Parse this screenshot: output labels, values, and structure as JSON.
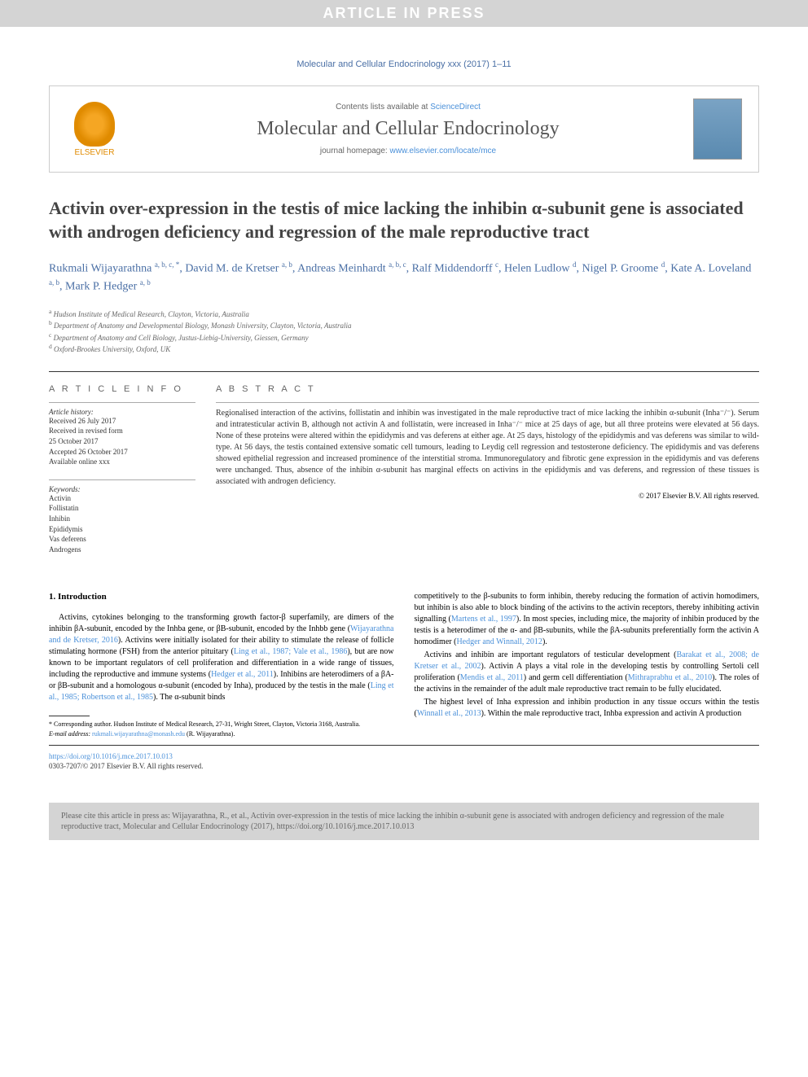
{
  "banner": "ARTICLE IN PRESS",
  "journal_ref": "Molecular and Cellular Endocrinology xxx (2017) 1–11",
  "header": {
    "contents_prefix": "Contents lists available at ",
    "contents_link": "ScienceDirect",
    "journal_name": "Molecular and Cellular Endocrinology",
    "homepage_prefix": "journal homepage: ",
    "homepage_link": "www.elsevier.com/locate/mce",
    "publisher": "ELSEVIER"
  },
  "title": "Activin over-expression in the testis of mice lacking the inhibin α-subunit gene is associated with androgen deficiency and regression of the male reproductive tract",
  "authors_html": "Rukmali Wijayarathna <sup>a, b, c, *</sup>, David M. de Kretser <sup>a, b</sup>, Andreas Meinhardt <sup>a, b, c</sup>, Ralf Middendorff <sup>c</sup>, Helen Ludlow <sup>d</sup>, Nigel P. Groome <sup>d</sup>, Kate A. Loveland <sup>a, b</sup>, Mark P. Hedger <sup>a, b</sup>",
  "affiliations": {
    "a": "Hudson Institute of Medical Research, Clayton, Victoria, Australia",
    "b": "Department of Anatomy and Developmental Biology, Monash University, Clayton, Victoria, Australia",
    "c": "Department of Anatomy and Cell Biology, Justus-Liebig-University, Giessen, Germany",
    "d": "Oxford-Brookes University, Oxford, UK"
  },
  "article_info": {
    "heading": "A R T I C L E  I N F O",
    "history_label": "Article history:",
    "history": "Received 26 July 2017\nReceived in revised form\n25 October 2017\nAccepted 26 October 2017\nAvailable online xxx",
    "keywords_label": "Keywords:",
    "keywords": "Activin\nFollistatin\nInhibin\nEpididymis\nVas deferens\nAndrogens"
  },
  "abstract": {
    "heading": "A B S T R A C T",
    "text": "Regionalised interaction of the activins, follistatin and inhibin was investigated in the male reproductive tract of mice lacking the inhibin α-subunit (Inha⁻/⁻). Serum and intratesticular activin B, although not activin A and follistatin, were increased in Inha⁻/⁻ mice at 25 days of age, but all three proteins were elevated at 56 days. None of these proteins were altered within the epididymis and vas deferens at either age. At 25 days, histology of the epididymis and vas deferens was similar to wild-type. At 56 days, the testis contained extensive somatic cell tumours, leading to Leydig cell regression and testosterone deficiency. The epididymis and vas deferens showed epithelial regression and increased prominence of the interstitial stroma. Immunoregulatory and fibrotic gene expression in the epididymis and vas deferens were unchanged. Thus, absence of the inhibin α-subunit has marginal effects on activins in the epididymis and vas deferens, and regression of these tissues is associated with androgen deficiency.",
    "copyright": "© 2017 Elsevier B.V. All rights reserved."
  },
  "intro": {
    "heading": "1.  Introduction",
    "p1_pre": "Activins, cytokines belonging to the transforming growth factor-β superfamily, are dimers of the inhibin βA-subunit, encoded by the Inhba gene, or βB-subunit, encoded by the Inhbb gene (",
    "p1_cite1": "Wijayarathna and de Kretser, 2016",
    "p1_mid1": "). Activins were initially isolated for their ability to stimulate the release of follicle stimulating hormone (FSH) from the anterior pituitary (",
    "p1_cite2": "Ling et al., 1987; Vale et al., 1986",
    "p1_mid2": "), but are now known to be important regulators of cell proliferation and differentiation in a wide range of tissues, including the reproductive and immune systems (",
    "p1_cite3": "Hedger et al., 2011",
    "p1_mid3": "). Inhibins are heterodimers of a βA- or βB-subunit and a homologous α-subunit (encoded by Inha), produced by the testis in the male (",
    "p1_cite4": "Ling et al., 1985; Robertson et al., 1985",
    "p1_end": "). The α-subunit binds",
    "p2_pre": "competitively to the β-subunits to form inhibin, thereby reducing the formation of activin homodimers, but inhibin is also able to block binding of the activins to the activin receptors, thereby inhibiting activin signalling (",
    "p2_cite1": "Martens et al., 1997",
    "p2_mid1": "). In most species, including mice, the majority of inhibin produced by the testis is a heterodimer of the α- and βB-subunits, while the βA-subunits preferentially form the activin A homodimer (",
    "p2_cite2": "Hedger and Winnall, 2012",
    "p2_end": ").",
    "p3_pre": "Activins and inhibin are important regulators of testicular development (",
    "p3_cite1": "Barakat et al., 2008; de Kretser et al., 2002",
    "p3_mid1": "). Activin A plays a vital role in the developing testis by controlling Sertoli cell proliferation (",
    "p3_cite2": "Mendis et al., 2011",
    "p3_mid2": ") and germ cell differentiation (",
    "p3_cite3": "Mithraprabhu et al., 2010",
    "p3_end": "). The roles of the activins in the remainder of the adult male reproductive tract remain to be fully elucidated.",
    "p4_pre": "The highest level of Inha expression and inhibin production in any tissue occurs within the testis (",
    "p4_cite1": "Winnall et al., 2013",
    "p4_end": "). Within the male reproductive tract, Inhba expression and activin A production"
  },
  "footnote": {
    "corresp": "* Corresponding author. Hudson Institute of Medical Research, 27-31, Wright Street, Clayton, Victoria 3168, Australia.",
    "email_label": "E-mail address: ",
    "email": "rukmali.wijayarathna@monash.edu",
    "email_suffix": " (R. Wijayarathna)."
  },
  "doi": "https://doi.org/10.1016/j.mce.2017.10.013",
  "issn": "0303-7207/© 2017 Elsevier B.V. All rights reserved.",
  "citebox": "Please cite this article in press as: Wijayarathna, R., et al., Activin over-expression in the testis of mice lacking the inhibin α-subunit gene is associated with androgen deficiency and regression of the male reproductive tract, Molecular and Cellular Endocrinology (2017), https://doi.org/10.1016/j.mce.2017.10.013"
}
